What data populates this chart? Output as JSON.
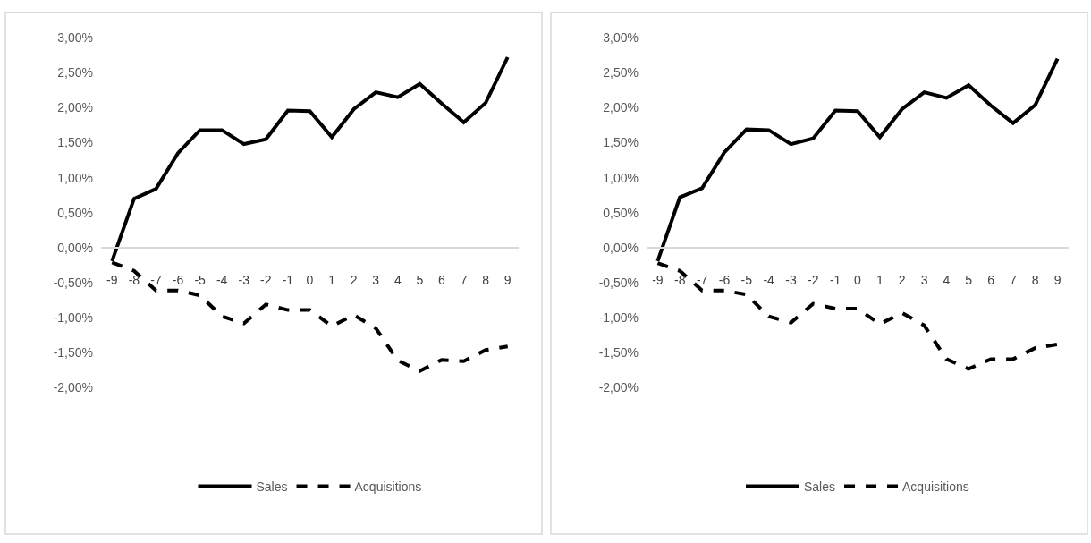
{
  "chart_data": [
    {
      "type": "line",
      "categories": [
        "-9",
        "-8",
        "-7",
        "-6",
        "-5",
        "-4",
        "-3",
        "-2",
        "-1",
        "0",
        "1",
        "2",
        "3",
        "4",
        "5",
        "6",
        "7",
        "8",
        "9"
      ],
      "series": [
        {
          "name": "Sales",
          "color": "#000000",
          "line_style": "solid",
          "values": [
            -0.19,
            0.7,
            0.84,
            1.35,
            1.68,
            1.68,
            1.48,
            1.55,
            1.96,
            1.95,
            1.58,
            1.98,
            2.22,
            2.15,
            2.34,
            2.06,
            1.79,
            2.07,
            2.72
          ]
        },
        {
          "name": "Acquisitions",
          "color": "#000000",
          "line_style": "dashed",
          "values": [
            -0.21,
            -0.33,
            -0.61,
            -0.61,
            -0.68,
            -0.98,
            -1.08,
            -0.81,
            -0.89,
            -0.89,
            -1.12,
            -0.96,
            -1.15,
            -1.61,
            -1.76,
            -1.6,
            -1.62,
            -1.46,
            -1.41
          ]
        }
      ],
      "ylim": [
        -2,
        3
      ],
      "yticks": [
        {
          "value": -2,
          "label": "-2,00%"
        },
        {
          "value": -1.5,
          "label": "-1,50%"
        },
        {
          "value": -1,
          "label": "-1,00%"
        },
        {
          "value": -0.5,
          "label": "-0,50%"
        },
        {
          "value": 0,
          "label": "0,00%"
        },
        {
          "value": 0.5,
          "label": "0,50%"
        },
        {
          "value": 1,
          "label": "1,00%"
        },
        {
          "value": 1.5,
          "label": "1,50%"
        },
        {
          "value": 2,
          "label": "2,00%"
        },
        {
          "value": 2.5,
          "label": "2,50%"
        },
        {
          "value": 3,
          "label": "3,00%"
        }
      ],
      "grid": false,
      "legend": "bottom"
    },
    {
      "type": "line",
      "categories": [
        "-9",
        "-8",
        "-7",
        "-6",
        "-5",
        "-4",
        "-3",
        "-2",
        "-1",
        "0",
        "1",
        "2",
        "3",
        "4",
        "5",
        "6",
        "7",
        "8",
        "9"
      ],
      "series": [
        {
          "name": "Sales",
          "color": "#000000",
          "line_style": "solid",
          "values": [
            -0.19,
            0.72,
            0.85,
            1.36,
            1.69,
            1.68,
            1.48,
            1.56,
            1.96,
            1.95,
            1.58,
            1.98,
            2.22,
            2.14,
            2.32,
            2.03,
            1.78,
            2.04,
            2.7
          ]
        },
        {
          "name": "Acquisitions",
          "color": "#000000",
          "line_style": "dashed",
          "values": [
            -0.22,
            -0.33,
            -0.61,
            -0.61,
            -0.67,
            -0.98,
            -1.07,
            -0.8,
            -0.87,
            -0.87,
            -1.09,
            -0.93,
            -1.11,
            -1.59,
            -1.73,
            -1.59,
            -1.59,
            -1.43,
            -1.38
          ]
        }
      ],
      "ylim": [
        -2,
        3
      ],
      "yticks": [
        {
          "value": -2,
          "label": "-2,00%"
        },
        {
          "value": -1.5,
          "label": "-1,50%"
        },
        {
          "value": -1,
          "label": "-1,00%"
        },
        {
          "value": -0.5,
          "label": "-0,50%"
        },
        {
          "value": 0,
          "label": "0,00%"
        },
        {
          "value": 0.5,
          "label": "0,50%"
        },
        {
          "value": 1,
          "label": "1,00%"
        },
        {
          "value": 1.5,
          "label": "1,50%"
        },
        {
          "value": 2,
          "label": "2,00%"
        },
        {
          "value": 2.5,
          "label": "2,50%"
        },
        {
          "value": 3,
          "label": "3,00%"
        }
      ],
      "grid": false,
      "legend": "bottom"
    }
  ]
}
